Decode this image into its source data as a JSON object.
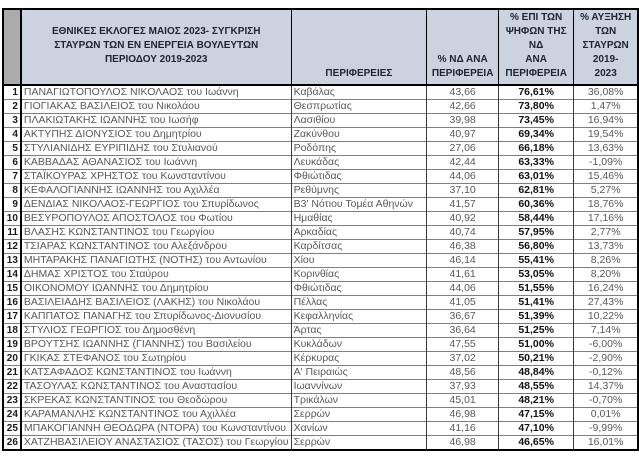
{
  "table": {
    "header": {
      "corner": "",
      "title": "ΕΘΝΙΚΕΣ ΕΚΛΟΓΕΣ ΜΑΙΟΣ 2023- ΣΥΓΚΡΙΣΗ\nΣΤΑΥΡΩΝ ΤΩΝ ΕΝ ΕΝΕΡΓΕΙΑ ΒΟΥΛΕΥΤΩΝ\nΠΕΡΙΟΔΟΥ 2019-2023",
      "col_region": "ΠΕΡΙΦΕΡΕΙΕΣ",
      "col_nd_percent": "% ΝΔ ΑΝΑ\nΠΕΡΙΦΕΡΕΙΑ",
      "col_votes_share": "% ΕΠΙ ΤΩΝ\nΨΗΦΩΝ ΤΗΣ ΝΔ\nΑΝΑ ΠΕΡΙΦΕΡΕΙΑ",
      "col_cross_increase": "% ΑΥΞΗΣΗ ΤΩΝ\nΣΤΑΥΡΩΝ 2019-\n2023"
    },
    "rows": [
      {
        "num": "1",
        "name": "ΠΑΝΑΓΙΩΤΟΠΟΥΛΟΣ ΝΙΚΟΛΑΟΣ του Ιωάννη",
        "region": "Καβάλας",
        "nd": "43,66",
        "epi": "76,61%",
        "incr": "36,08%"
      },
      {
        "num": "2",
        "name": "ΓΙΟΓΙΑΚΑΣ ΒΑΣΙΛΕΙΟΣ του Νικολάου",
        "region": "Θεσπρωτίας",
        "nd": "42,66",
        "epi": "73,80%",
        "incr": "1,47%"
      },
      {
        "num": "3",
        "name": "ΠΛΑΚΙΩΤΑΚΗΣ ΙΩΑΝΝΗΣ του Ιωσήφ",
        "region": "Λασιθίου",
        "nd": "39,98",
        "epi": "73,45%",
        "incr": "16,94%"
      },
      {
        "num": "4",
        "name": "ΑΚΤΥΠΗΣ ΔΙΟΝΥΣΙΟΣ του Δημητρίου",
        "region": "Ζακύνθου",
        "nd": "40,97",
        "epi": "69,34%",
        "incr": "19,54%"
      },
      {
        "num": "5",
        "name": "ΣΤΥΛΙΑΝΙΔΗΣ ΕΥΡΙΠΙΔΗΣ του Στυλιανού",
        "region": "Ροδόπης",
        "nd": "27,06",
        "epi": "66,18%",
        "incr": "13,63%"
      },
      {
        "num": "6",
        "name": "ΚΑΒΒΑΔΑΣ ΑΘΑΝΑΣΙΟΣ του Ιωάννη",
        "region": "Λευκάδας",
        "nd": "42,44",
        "epi": "63,33%",
        "incr": "-1,09%"
      },
      {
        "num": "7",
        "name": "ΣΤΑΪΚΟΥΡΑΣ ΧΡΗΣΤΟΣ του Κωνσταντίνου",
        "region": "Φθιώτιδας",
        "nd": "44,06",
        "epi": "63,01%",
        "incr": "15,46%"
      },
      {
        "num": "8",
        "name": "ΚΕΦΑΛΟΓΙΑΝΝΗΣ ΙΩΑΝΝΗΣ του Αχιλλέα",
        "region": "Ρεθύμνης",
        "nd": "37,10",
        "epi": "62,81%",
        "incr": "5,27%"
      },
      {
        "num": "9",
        "name": "ΔΕΝΔΙΑΣ ΝΙΚΟΛΑΟΣ-ΓΕΩΡΓΙΟΣ του Σπυρίδωνος",
        "region": "Β3' Νότιου Τομέα Αθηνών",
        "nd": "41,57",
        "epi": "60,36%",
        "incr": "18,76%"
      },
      {
        "num": "10",
        "name": "ΒΕΣΥΡΟΠΟΥΛΟΣ ΑΠΟΣΤΟΛΟΣ του Φωτίου",
        "region": "Ημαθίας",
        "nd": "40,92",
        "epi": "58,44%",
        "incr": "17,16%"
      },
      {
        "num": "11",
        "name": "ΒΛΑΣΗΣ ΚΩΝΣΤΑΝΤΙΝΟΣ του Γεωργίου",
        "region": "Αρκαδίας",
        "nd": "40,74",
        "epi": "57,95%",
        "incr": "2,77%"
      },
      {
        "num": "12",
        "name": "ΤΣΙΑΡΑΣ ΚΩΝΣΤΑΝΤΙΝΟΣ του Αλεξάνδρου",
        "region": "Καρδίτσας",
        "nd": "46,38",
        "epi": "56,80%",
        "incr": "13,73%"
      },
      {
        "num": "13",
        "name": "ΜΗΤΑΡΑΚΗΣ ΠΑΝΑΓΙΩΤΗΣ (ΝΟΤΗΣ) του Αντωνίου",
        "region": "Χίου",
        "nd": "46,14",
        "epi": "55,41%",
        "incr": "8,26%"
      },
      {
        "num": "14",
        "name": "ΔΗΜΑΣ ΧΡΙΣΤΟΣ του Σταύρου",
        "region": "Κορινθίας",
        "nd": "41,61",
        "epi": "53,05%",
        "incr": "8,20%"
      },
      {
        "num": "15",
        "name": "ΟΙΚΟΝΟΜΟΥ ΙΩΑΝΝΗΣ του Δημητρίου",
        "region": "Φθιώτιδας",
        "nd": "44,06",
        "epi": "51,55%",
        "incr": "16,24%"
      },
      {
        "num": "16",
        "name": "ΒΑΣΙΛΕΙΑΔΗΣ ΒΑΣΙΛΕΙΟΣ (ΛΑΚΗΣ) του Νικολάου",
        "region": "Πέλλας",
        "nd": "41,05",
        "epi": "51,41%",
        "incr": "27,43%"
      },
      {
        "num": "17",
        "name": "ΚΑΠΠΑΤΟΣ ΠΑΝΑΓΗΣ του Σπυρίδωνος-Διονυσίου",
        "region": "Κεφαλληνίας",
        "nd": "36,67",
        "epi": "51,39%",
        "incr": "10,22%"
      },
      {
        "num": "18",
        "name": "ΣΤΥΛΙΟΣ ΓΕΩΡΓΙΟΣ του Δημοσθένη",
        "region": "Άρτας",
        "nd": "36,64",
        "epi": "51,25%",
        "incr": "7,14%"
      },
      {
        "num": "19",
        "name": "ΒΡΟΥΤΣΗΣ ΙΩΑΝΝΗΣ (ΓΙΑΝΝΗΣ) του Βασιλείου",
        "region": "Κυκλάδων",
        "nd": "47,55",
        "epi": "51,00%",
        "incr": "-6,00%"
      },
      {
        "num": "20",
        "name": "ΓΚΙΚΑΣ ΣΤΕΦΑΝΟΣ του Σωτηρίου",
        "region": "Κέρκυρας",
        "nd": "37,02",
        "epi": "50,21%",
        "incr": "-2,90%"
      },
      {
        "num": "21",
        "name": "ΚΑΤΣΑΦΑΔΟΣ ΚΩΝΣΤΑΝΤΙΝΟΣ του Ιωάννη",
        "region": "Α' Πειραιώς",
        "nd": "48,56",
        "epi": "48,84%",
        "incr": "-0,12%"
      },
      {
        "num": "22",
        "name": "ΤΑΣΟΥΛΑΣ ΚΩΝΣΤΑΝΤΙΝΟΣ του Αναστασίου",
        "region": "Ιωαννίνων",
        "nd": "37,93",
        "epi": "48,55%",
        "incr": "14,37%"
      },
      {
        "num": "23",
        "name": "ΣΚΡΕΚΑΣ ΚΩΝΣΤΑΝΤΙΝΟΣ του Θεοδώρου",
        "region": "Τρικάλων",
        "nd": "45,01",
        "epi": "48,21%",
        "incr": "-0,70%"
      },
      {
        "num": "24",
        "name": "ΚΑΡΑΜΑΝΛΗΣ ΚΩΝΣΤΑΝΤΙΝΟΣ του Αχιλλέα",
        "region": "Σερρών",
        "nd": "46,98",
        "epi": "47,15%",
        "incr": "0,01%"
      },
      {
        "num": "25",
        "name": "ΜΠΑΚΟΓΙΑΝΝΗ ΘΕΟΔΩΡΑ (ΝΤΟΡΑ) του Κωνσταντίνου",
        "region": "Χανίων",
        "nd": "41,16",
        "epi": "47,10%",
        "incr": "-9,99%"
      },
      {
        "num": "26",
        "name": "ΧΑΤΖΗΒΑΣΙΛΕΙΟΥ ΑΝΑΣΤΑΣΙΟΣ (ΤΑΣΟΣ) του Γεωργίου",
        "region": "Σερρών",
        "nd": "46,98",
        "epi": "46,65%",
        "incr": "16,01%"
      }
    ]
  },
  "colors": {
    "header_fill": "#ccd3e0",
    "corner_fill": "#ababab",
    "border_heavy": "#000000",
    "border_light": "#7f7f7f",
    "text_muted": "#595959",
    "text_strong": "#111111"
  }
}
